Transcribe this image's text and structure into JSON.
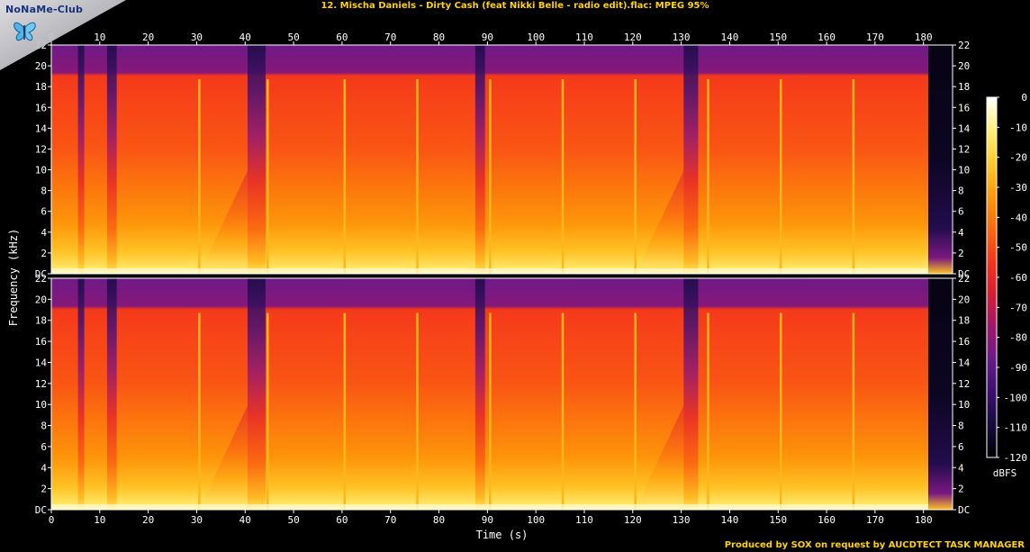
{
  "title": "12. Mischa Daniels - Dirty Cash (feat Nikki Belle - radio edit).flac: MPEG 95%",
  "footer": "Produced by SOX on request by AUCDTECT TASK MANAGER",
  "logo": {
    "text": "NoNaMe-Club",
    "icon": "butterfly-icon"
  },
  "chart_data": {
    "type": "heatmap",
    "xlabel": "Time (s)",
    "ylabel": "Frequency (kHz)",
    "xlim": [
      0,
      186
    ],
    "x_ticks": [
      0,
      10,
      20,
      30,
      40,
      50,
      60,
      70,
      80,
      90,
      100,
      110,
      120,
      130,
      140,
      150,
      160,
      170,
      180
    ],
    "ylim_khz": [
      0,
      22
    ],
    "y_tick_labels": [
      "DC",
      "2",
      "4",
      "6",
      "8",
      "10",
      "12",
      "14",
      "16",
      "18",
      "20",
      "22"
    ],
    "channels": 2,
    "colorbar": {
      "label": "dBFS",
      "range": [
        -120,
        0
      ],
      "ticks": [
        0,
        -10,
        -20,
        -30,
        -40,
        -50,
        -60,
        -70,
        -80,
        -90,
        -100,
        -110,
        -120
      ],
      "colors": [
        "#000000",
        "#160b3d",
        "#3a0f6e",
        "#6a1a8a",
        "#a0176a",
        "#d81c34",
        "#f5361c",
        "#fb6a0e",
        "#fd9a0a",
        "#ffcb2a",
        "#fff07a",
        "#ffffff"
      ]
    },
    "spectral_cutoff_khz": 19,
    "track_end_s": 181,
    "quiet_segments_s": [
      [
        5.5,
        6.8
      ],
      [
        11.5,
        13.5
      ],
      [
        40.5,
        44.2
      ],
      [
        87.5,
        89.5
      ],
      [
        130.5,
        133.5
      ],
      [
        181,
        186
      ]
    ],
    "transient_lines_s": [
      30.5,
      44.6,
      60.5,
      75.5,
      90.5,
      105.5,
      120.5,
      135.5,
      150.5,
      165.5
    ]
  }
}
